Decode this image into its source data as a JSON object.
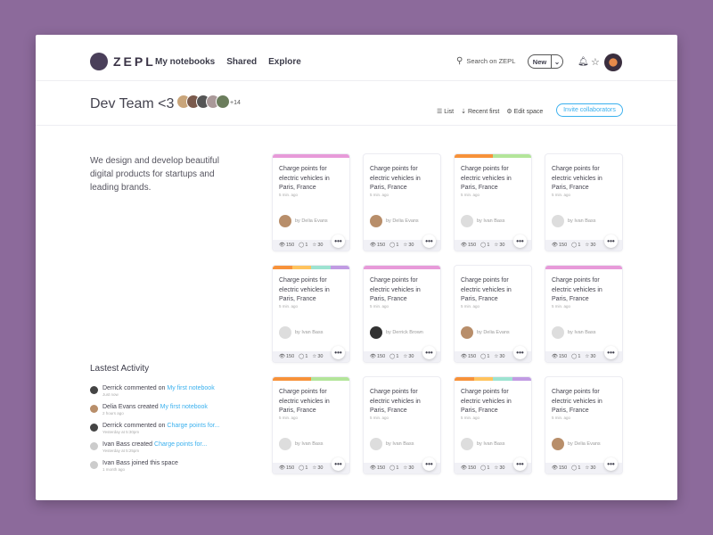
{
  "brand": "ZEPL",
  "nav": [
    "My notebooks",
    "Shared",
    "Explore"
  ],
  "search_placeholder": "Search on ZEPL",
  "new_label": "New",
  "space": {
    "title": "Dev Team <3",
    "extra_members": "+14",
    "description": "We design and develop beautiful digital products for startups and leading brands."
  },
  "tools": {
    "list": "List",
    "sort": "Recent first",
    "edit": "Edit space",
    "invite": "Invite collaborators"
  },
  "colors": {
    "accent": "#3ab0ee",
    "pink": "#e79ad9",
    "orange": "#f7923a",
    "yellow": "#ffc35e",
    "teal": "#9de3d1",
    "purple": "#c19be3",
    "green": "#b3e59a"
  },
  "activity": {
    "title": "Lastest Activity",
    "items": [
      {
        "actor": "Derrick",
        "action": "commented on",
        "target": "My first notebook",
        "time": "Just now"
      },
      {
        "actor": "Delia Evans",
        "action": "created",
        "target": "My first notebook",
        "time": "2 hours ago"
      },
      {
        "actor": "Derrick",
        "action": "commented on",
        "target": "Charge points for...",
        "time": "Yesterday at 5:30pm"
      },
      {
        "actor": "Ivan Bass",
        "action": "created",
        "target": "Charge points for...",
        "time": "Yesterday at 5:25pm"
      },
      {
        "actor": "Ivan Bass",
        "action": "joined this space",
        "target": "",
        "time": "1 month ago"
      }
    ]
  },
  "cards": [
    {
      "title": "Charge points for electric vehicles in Paris, France",
      "time": "5 min. ago",
      "author": "by Delia Evans",
      "views": "150",
      "comments": "1",
      "stars": "30",
      "tags": [
        "pink"
      ]
    },
    {
      "title": "Charge points for electric vehicles in Paris, France",
      "time": "5 min. ago",
      "author": "by Delia Evans",
      "views": "150",
      "comments": "1",
      "stars": "30",
      "tags": []
    },
    {
      "title": "Charge points for electric vehicles in Paris, France",
      "time": "5 min. ago",
      "author": "by Ivan Bass",
      "views": "150",
      "comments": "1",
      "stars": "30",
      "tags": [
        "orange",
        "green"
      ]
    },
    {
      "title": "Charge points for electric vehicles in Paris, France",
      "time": "5 min. ago",
      "author": "by Ivan Bass",
      "views": "150",
      "comments": "1",
      "stars": "30",
      "tags": []
    },
    {
      "title": "Charge points for electric vehicles in Paris, France",
      "time": "5 min. ago",
      "author": "by Ivan Bass",
      "views": "150",
      "comments": "1",
      "stars": "30",
      "tags": [
        "orange",
        "yellow",
        "teal",
        "purple"
      ]
    },
    {
      "title": "Charge points for electric vehicles in Paris, France",
      "time": "5 min. ago",
      "author": "by Derrick Brown",
      "views": "150",
      "comments": "1",
      "stars": "30",
      "tags": [
        "pink"
      ]
    },
    {
      "title": "Charge points for electric vehicles in Paris, France",
      "time": "5 min. ago",
      "author": "by Delia Evans",
      "views": "150",
      "comments": "1",
      "stars": "30",
      "tags": []
    },
    {
      "title": "Charge points for electric vehicles in Paris, France",
      "time": "5 min. ago",
      "author": "by Ivan Bass",
      "views": "150",
      "comments": "1",
      "stars": "30",
      "tags": [
        "pink"
      ]
    },
    {
      "title": "Charge points for electric vehicles in Paris, France",
      "time": "5 min. ago",
      "author": "by Ivan Bass",
      "views": "150",
      "comments": "1",
      "stars": "30",
      "tags": [
        "orange",
        "green"
      ]
    },
    {
      "title": "Charge points for electric vehicles in Paris, France",
      "time": "5 min. ago",
      "author": "by Ivan Bass",
      "views": "150",
      "comments": "1",
      "stars": "30",
      "tags": []
    },
    {
      "title": "Charge points for electric vehicles in Paris, France",
      "time": "5 min. ago",
      "author": "by Ivan Bass",
      "views": "150",
      "comments": "1",
      "stars": "30",
      "tags": [
        "orange",
        "yellow",
        "teal",
        "purple"
      ]
    },
    {
      "title": "Charge points for electric vehicles in Paris, France",
      "time": "5 min. ago",
      "author": "by Delia Evans",
      "views": "150",
      "comments": "1",
      "stars": "30",
      "tags": []
    }
  ]
}
